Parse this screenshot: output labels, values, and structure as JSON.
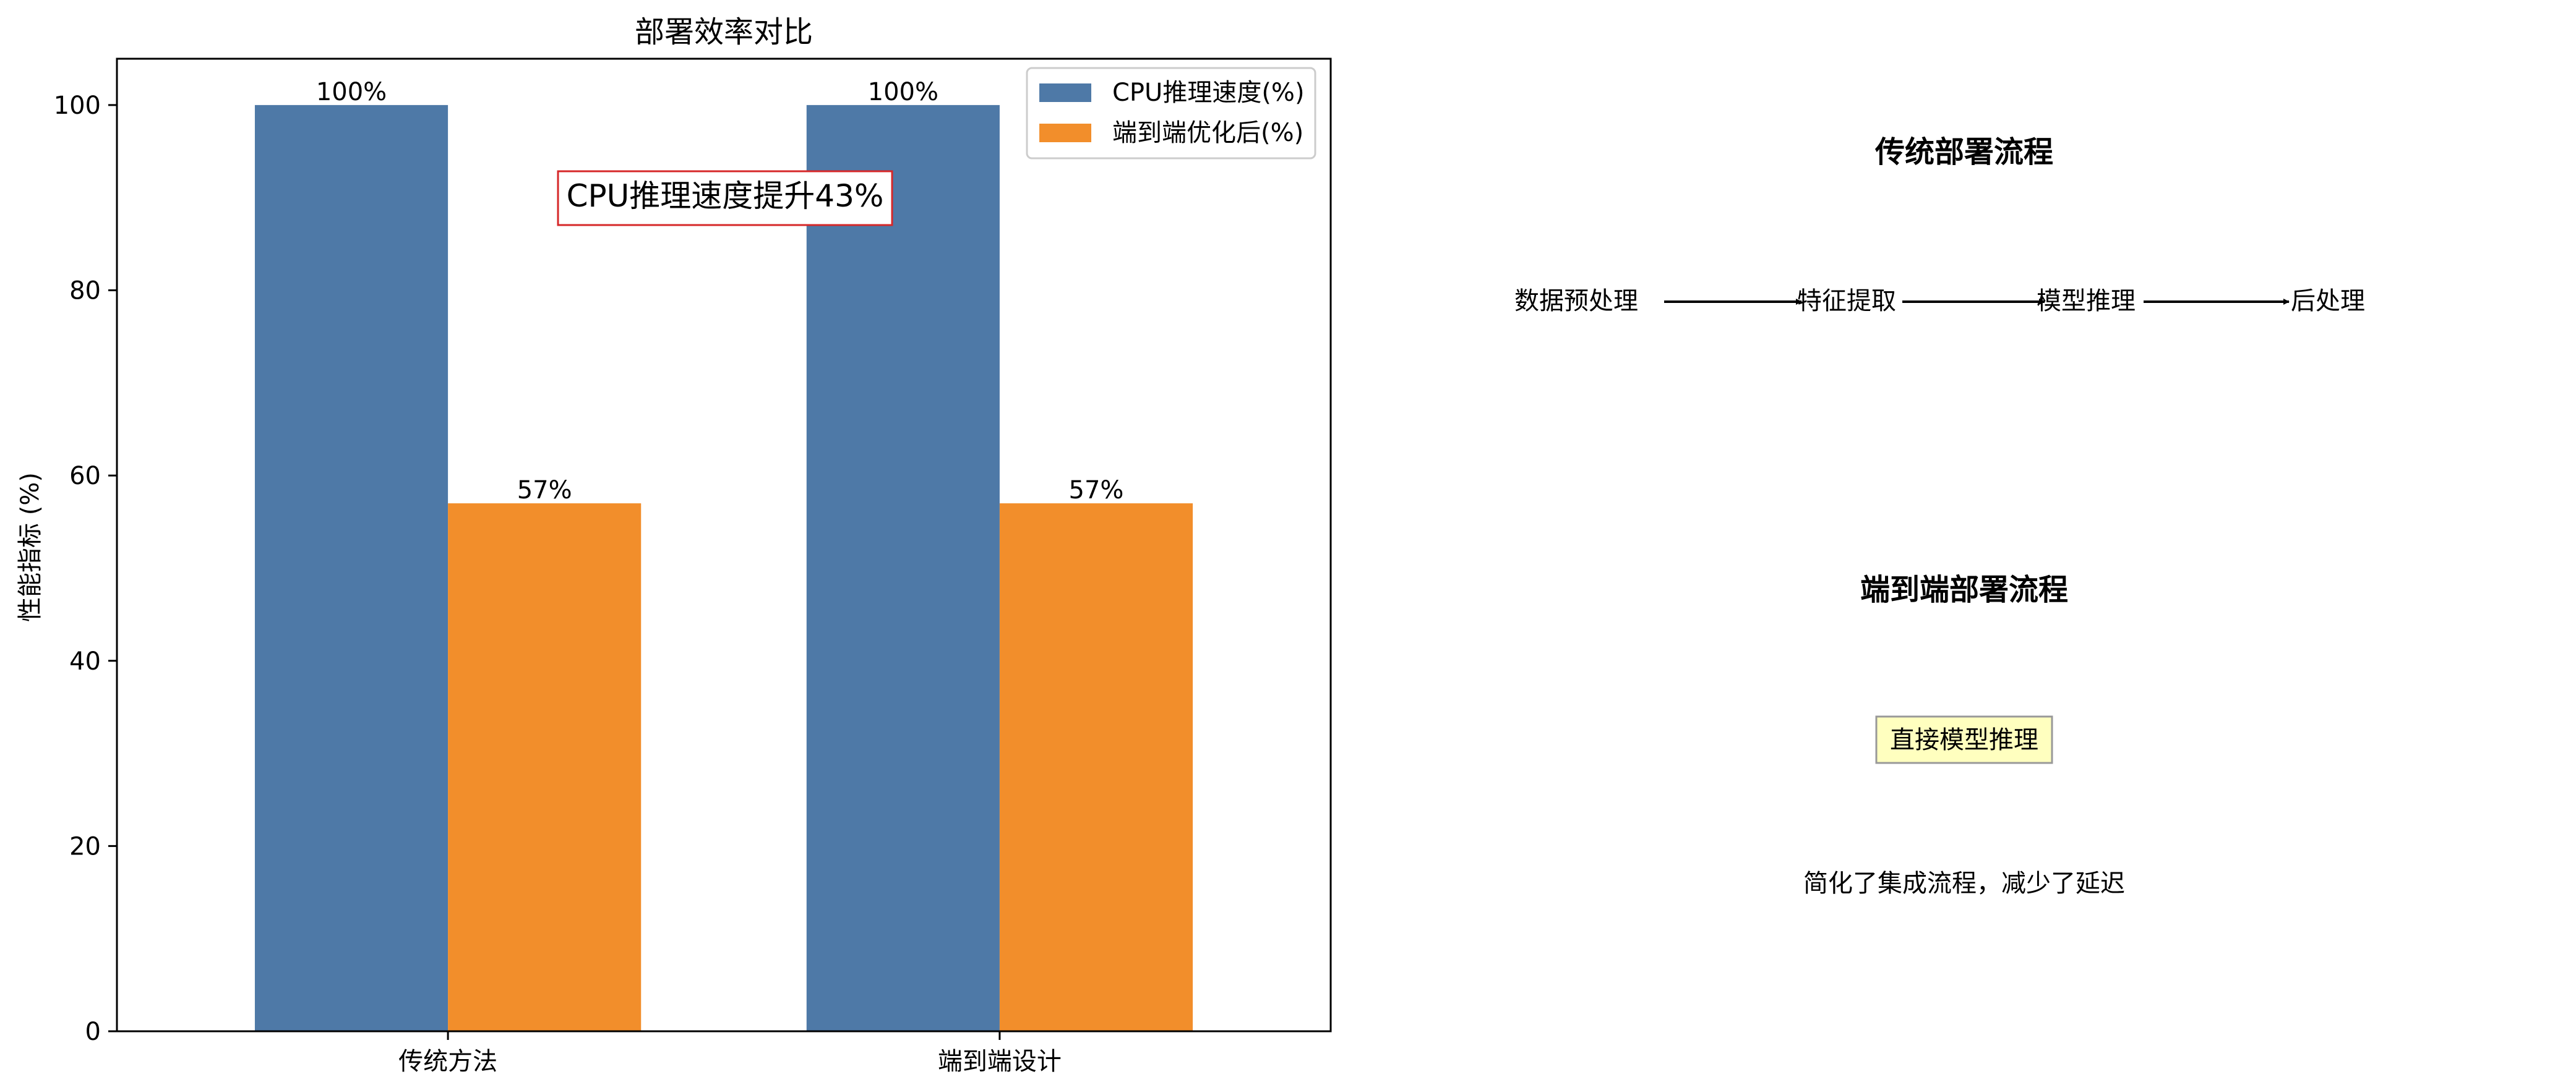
{
  "chart_data": {
    "type": "bar",
    "title": "部署效率对比",
    "xlabel": "",
    "ylabel": "性能指标 (%)",
    "categories": [
      "传统方法",
      "端到端设计"
    ],
    "series": [
      {
        "name": "CPU推理速度(%)",
        "values": [
          100,
          100
        ],
        "color": "#4e79a7"
      },
      {
        "name": "端到端优化后(%)",
        "values": [
          57,
          57
        ],
        "color": "#f28e2b"
      }
    ],
    "data_labels": [
      [
        "100%",
        "100%"
      ],
      [
        "57%",
        "57%"
      ]
    ],
    "ylim": [
      0,
      105
    ],
    "yticks": [
      0,
      20,
      40,
      60,
      80,
      100
    ],
    "grid": false,
    "legend": "top-right",
    "annotation": "CPU推理速度提升43%"
  },
  "diagram": {
    "traditional_title": "传统部署流程",
    "traditional_steps": [
      "数据预处理",
      "特征提取",
      "模型推理",
      "后处理"
    ],
    "e2e_title": "端到端部署流程",
    "e2e_step": "直接模型推理",
    "note": "简化了集成流程，减少了延迟"
  }
}
